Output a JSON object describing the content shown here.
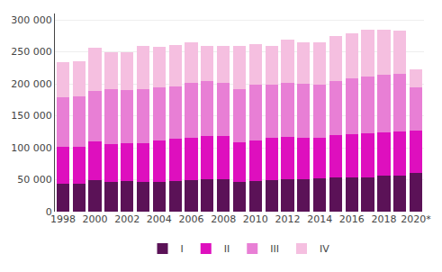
{
  "chart_data": {
    "type": "bar",
    "stacked": true,
    "categories": [
      "1998",
      null,
      "2000",
      null,
      "2002",
      null,
      "2004",
      null,
      "2006",
      null,
      "2008",
      null,
      "2010",
      null,
      "2012",
      null,
      "2014",
      null,
      "2016",
      null,
      "2018",
      null,
      "2020*"
    ],
    "series": [
      {
        "name": "I",
        "color": "#5b1257",
        "values": [
          44000,
          44000,
          49000,
          47000,
          48000,
          46000,
          47000,
          48000,
          50000,
          51000,
          51000,
          47000,
          48000,
          50000,
          51000,
          51000,
          52000,
          53000,
          54000,
          54000,
          56000,
          57000,
          60000
        ]
      },
      {
        "name": "II",
        "color": "#de0fbe",
        "values": [
          57000,
          58000,
          61000,
          59000,
          59000,
          61000,
          65000,
          66000,
          65000,
          67000,
          68000,
          61000,
          64000,
          66000,
          66000,
          64000,
          63000,
          67000,
          67000,
          68000,
          68000,
          68000,
          67000
        ]
      },
      {
        "name": "III",
        "color": "#e87fd5",
        "values": [
          78000,
          79000,
          79000,
          86000,
          83000,
          85000,
          83000,
          82000,
          87000,
          86000,
          83000,
          84000,
          87000,
          83000,
          85000,
          85000,
          83000,
          85000,
          88000,
          90000,
          90000,
          90000,
          68000
        ]
      },
      {
        "name": "IV",
        "color": "#f5bfe0",
        "values": [
          55000,
          55000,
          68000,
          58000,
          60000,
          67000,
          63000,
          64000,
          63000,
          55000,
          57000,
          67000,
          63000,
          60000,
          67000,
          65000,
          67000,
          70000,
          70000,
          72000,
          70000,
          68000,
          28000
        ]
      }
    ],
    "ylim": [
      0,
      310000
    ],
    "yticks": [
      0,
      {
        "value": 50000,
        "label": "50 000"
      },
      {
        "value": 100000,
        "label": "100 000"
      },
      {
        "value": 150000,
        "label": "150 000"
      },
      {
        "value": 200000,
        "label": "200 000"
      },
      {
        "value": 250000,
        "label": "250 000"
      },
      {
        "value": 300000,
        "label": "300 000"
      }
    ],
    "grid": true,
    "legend": "bottom"
  }
}
